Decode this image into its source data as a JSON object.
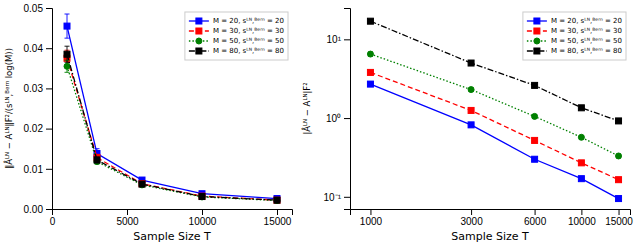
{
  "chart_data": [
    {
      "type": "line",
      "x": [
        1000,
        3000,
        6000,
        10000,
        15000
      ],
      "xlabel": "Sample Size T",
      "ylabel": "‖Âᴸᴺ − Aᴸᴺ‖F²/(sᴸᴺ,ᴮᵉʳⁿ log(M))",
      "xlim": [
        0,
        16000
      ],
      "xticks": [
        0,
        5000,
        10000,
        15000
      ],
      "ylim": [
        0,
        0.05
      ],
      "yticks": [
        {
          "value": 0,
          "label": "0.00"
        },
        {
          "value": 0.01,
          "label": "0.01"
        },
        {
          "value": 0.02,
          "label": "0.02"
        },
        {
          "value": 0.03,
          "label": "0.03"
        },
        {
          "value": 0.04,
          "label": "0.04"
        },
        {
          "value": 0.05,
          "label": "0.05"
        }
      ],
      "grid": false,
      "legend": "upper right",
      "series": [
        {
          "name": "M = 20, sᴸᴺ,ᴮᵉʳⁿ = 20",
          "color": "blue",
          "line_style": "solid",
          "marker": "square",
          "values": [
            0.0455,
            0.0138,
            0.0072,
            0.0038,
            0.0026
          ],
          "errors": [
            0.003,
            0.0012,
            0.0005,
            0.0003,
            0.0002
          ]
        },
        {
          "name": "M = 30, sᴸᴺ,ᴮᵉʳⁿ = 30",
          "color": "red",
          "line_style": "dashed",
          "marker": "square",
          "values": [
            0.0375,
            0.0128,
            0.0063,
            0.0032,
            0.0022
          ],
          "errors": [
            0.002,
            0.0008,
            0.0003,
            0.0002,
            0.0001
          ]
        },
        {
          "name": "M = 50, sᴸᴺ,ᴮᵉʳⁿ = 50",
          "color": "green",
          "line_style": "dotted",
          "marker": "circle",
          "values": [
            0.0355,
            0.0118,
            0.006,
            0.003,
            0.0021
          ],
          "errors": [
            0.0015,
            0.0006,
            0.0003,
            0.0002,
            0.0001
          ]
        },
        {
          "name": "M = 80, sᴸᴺ,ᴮᵉʳⁿ = 80",
          "color": "black",
          "line_style": "dashdot",
          "marker": "square",
          "values": [
            0.0385,
            0.0122,
            0.0062,
            0.0031,
            0.0022
          ],
          "errors": [
            0.002,
            0.0007,
            0.0003,
            0.0002,
            0.0001
          ]
        }
      ]
    },
    {
      "type": "line",
      "x": [
        1000,
        3000,
        6000,
        10000,
        15000
      ],
      "xlabel": "Sample Size T",
      "ylabel": "|Âᴸᴺ − Aᴸᴺ|F²",
      "log": true,
      "xlim": [
        800,
        17000
      ],
      "xticks": [
        1000,
        3000,
        6000,
        10000,
        15000
      ],
      "ylim": [
        0.07,
        25
      ],
      "yticks": [
        {
          "value": 0.1,
          "label": "10⁻¹"
        },
        {
          "value": 1,
          "label": "10⁰"
        },
        {
          "value": 10,
          "label": "10¹"
        }
      ],
      "grid": false,
      "legend": "upper right",
      "series": [
        {
          "name": "M = 20, sᴸᴺ,ᴮᵉʳⁿ = 20",
          "color": "blue",
          "line_style": "solid",
          "marker": "square",
          "values": [
            2.7,
            0.82,
            0.3,
            0.17,
            0.095
          ],
          "errors": [
            0.18,
            0.05,
            0.018,
            0.009,
            0.006
          ]
        },
        {
          "name": "M = 30, sᴸᴺ,ᴮᵉʳⁿ = 30",
          "color": "red",
          "line_style": "dashed",
          "marker": "square",
          "values": [
            3.8,
            1.25,
            0.52,
            0.27,
            0.165
          ],
          "errors": [
            0.25,
            0.07,
            0.03,
            0.015,
            0.01
          ]
        },
        {
          "name": "M = 50, sᴸᴺ,ᴮᵉʳⁿ = 50",
          "color": "green",
          "line_style": "dotted",
          "marker": "circle",
          "values": [
            6.5,
            2.3,
            1.05,
            0.57,
            0.33
          ],
          "errors": [
            0.4,
            0.12,
            0.06,
            0.03,
            0.018
          ]
        },
        {
          "name": "M = 80, sᴸᴺ,ᴮᵉʳⁿ = 80",
          "color": "black",
          "line_style": "dashdot",
          "marker": "square",
          "values": [
            17.0,
            5.0,
            2.6,
            1.35,
            0.92
          ],
          "errors": [
            0.9,
            0.28,
            0.15,
            0.07,
            0.05
          ]
        }
      ]
    }
  ]
}
